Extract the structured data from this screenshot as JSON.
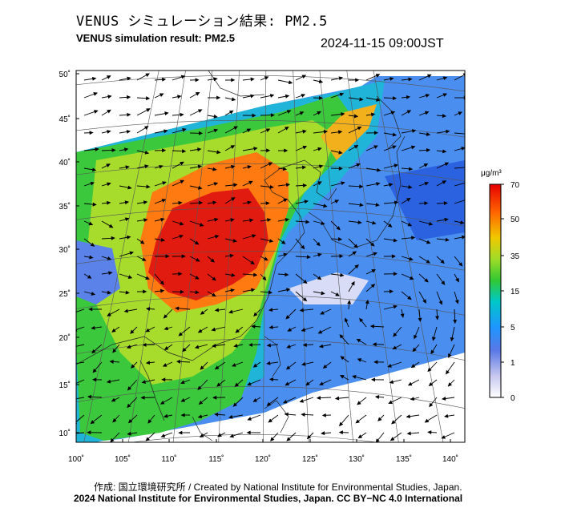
{
  "header": {
    "title_jp": "VENUS シミュレーション結果: PM2.5",
    "title_en": "VENUS simulation result: PM2.5",
    "timestamp": "2024-11-15 09:00JST"
  },
  "map": {
    "lat_ticks": [
      "50˚",
      "45˚",
      "40˚",
      "35˚",
      "30˚",
      "25˚",
      "20˚",
      "15˚",
      "10˚"
    ],
    "lon_ticks": [
      "100˚",
      "105˚",
      "110˚",
      "115˚",
      "120˚",
      "125˚",
      "130˚",
      "135˚",
      "140˚"
    ],
    "lat_range": [
      9,
      51
    ],
    "lon_range": [
      100,
      141
    ],
    "layers": [
      "PM2.5 concentration field",
      "wind vectors",
      "coastlines",
      "graticule"
    ]
  },
  "colorbar": {
    "unit": "μg/m³",
    "tick_labels": [
      "70",
      "50",
      "35",
      "15",
      "5",
      "1",
      "0"
    ],
    "colors": [
      "#ffffff",
      "#c8c8f0",
      "#5a78e6",
      "#1e96ff",
      "#00c8c8",
      "#32c832",
      "#a0dc28",
      "#f0c800",
      "#ff6400",
      "#e60000"
    ]
  },
  "footer": {
    "credit": "作成: 国立環境研究所 / Created by National Institute for Environmental Studies, Japan.",
    "copyright": "2024 National Institute for Environmental Studies, Japan. CC BY−NC 4.0 International"
  }
}
